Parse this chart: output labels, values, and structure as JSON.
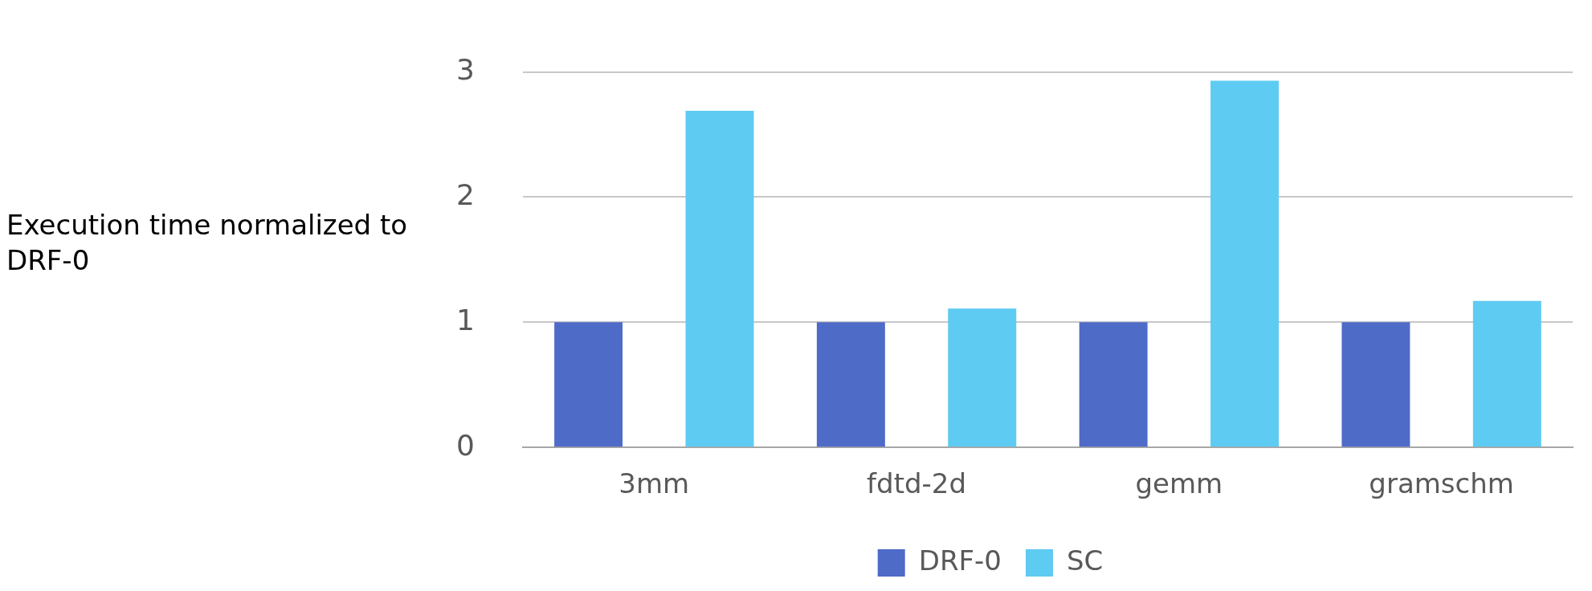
{
  "chart_data": {
    "type": "bar",
    "ylabel": "Execution time normalized to DRF-0",
    "categories": [
      "3mm",
      "fdtd-2d",
      "gemm",
      "gramschm"
    ],
    "series": [
      {
        "name": "DRF-0",
        "color": "#4f6bc8",
        "values": [
          1,
          1,
          1,
          1
        ]
      },
      {
        "name": "SC",
        "color": "#5ecbf2",
        "values": [
          2.69,
          1.11,
          2.93,
          1.17
        ]
      }
    ],
    "ylim": [
      0,
      3
    ],
    "yticks": [
      0,
      1,
      2,
      3
    ],
    "grid": "y",
    "legend": "bottom"
  }
}
